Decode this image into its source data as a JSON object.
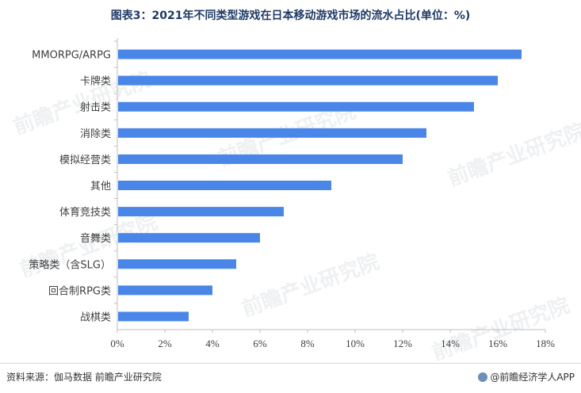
{
  "title": "图表3：2021年不同类型游戏在日本移动游戏市场的流水占比(单位：%)",
  "source": "资料来源：伽马数据 前瞻产业研究院",
  "brand": "@前瞻经济学人APP",
  "watermark": "前瞻产业研究院",
  "colors": {
    "bar": "#4a86e8",
    "axis": "#bfbfbf",
    "text": "#404040"
  },
  "chart_data": {
    "type": "bar",
    "orientation": "horizontal",
    "categories": [
      "MMORPG/ARPG",
      "卡牌类",
      "射击类",
      "消除类",
      "模拟经营类",
      "其他",
      "体育竞技类",
      "音舞类",
      "策略类（含SLG）",
      "回合制RPG类",
      "战棋类"
    ],
    "values": [
      17,
      16,
      15,
      13,
      12,
      9,
      7,
      6,
      5,
      4,
      3
    ],
    "xlim": [
      0,
      18
    ],
    "xticks": [
      "0%",
      "2%",
      "4%",
      "6%",
      "8%",
      "10%",
      "12%",
      "14%",
      "16%",
      "18%"
    ],
    "xtick_values": [
      0,
      2,
      4,
      6,
      8,
      10,
      12,
      14,
      16,
      18
    ],
    "grid": false,
    "legend": "none"
  }
}
